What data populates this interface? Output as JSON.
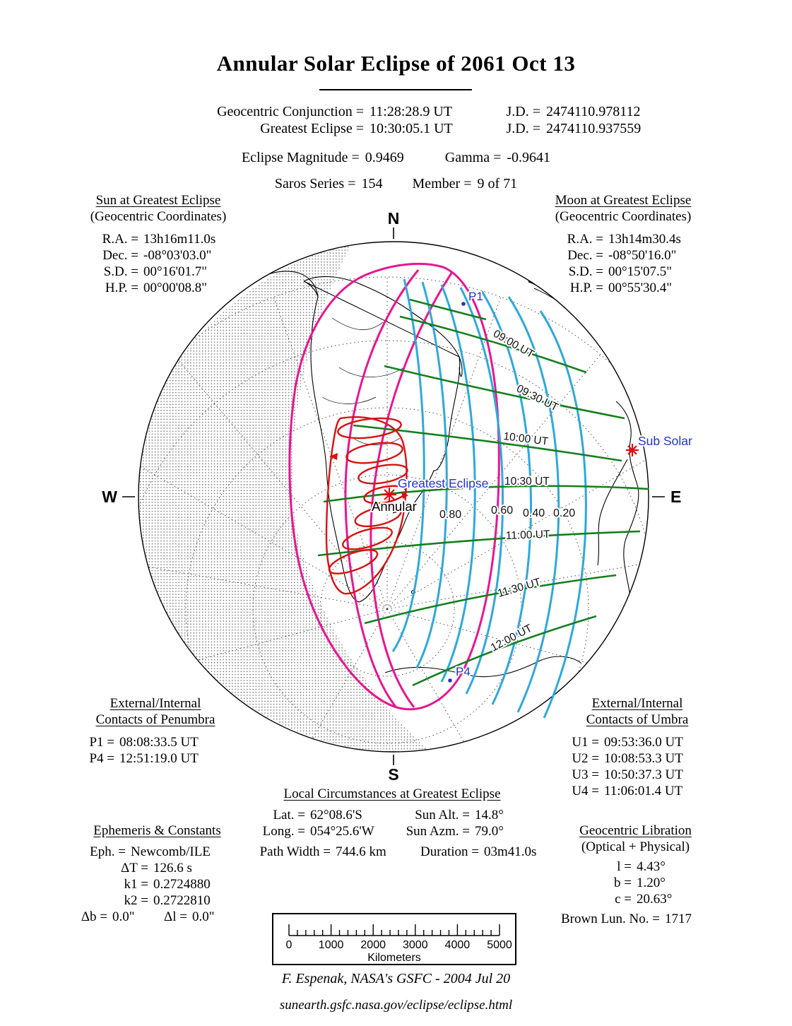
{
  "title": "Annular Solar Eclipse of  2061 Oct 13",
  "header": {
    "rows": [
      {
        "label": "Geocentric Conjunction =",
        "value": "11:28:28.9 UT",
        "jd_label": "J.D. =",
        "jd_value": "2474110.978112"
      },
      {
        "label": "Greatest Eclipse =",
        "value": "10:30:05.1 UT",
        "jd_label": "J.D. =",
        "jd_value": "2474110.937559"
      }
    ],
    "magnitude_label": "Eclipse Magnitude =",
    "magnitude_value": "0.9469",
    "gamma_label": "Gamma =",
    "gamma_value": "-0.9641",
    "saros_label": "Saros Series =",
    "saros_value": "154",
    "member_label": "Member =",
    "member_value": "9 of 71"
  },
  "sun": {
    "heading": "Sun at Greatest Eclipse",
    "subheading": "(Geocentric Coordinates)",
    "rows": [
      {
        "k": "R.A. =",
        "v": "13h16m11.0s"
      },
      {
        "k": "Dec. =",
        "v": "-08°03'03.0\""
      },
      {
        "k": "S.D. =",
        "v": "00°16'01.7\""
      },
      {
        "k": "H.P. =",
        "v": "00°00'08.8\""
      }
    ]
  },
  "moon": {
    "heading": "Moon at Greatest Eclipse",
    "subheading": "(Geocentric Coordinates)",
    "rows": [
      {
        "k": "R.A. =",
        "v": "13h14m30.4s"
      },
      {
        "k": "Dec. =",
        "v": "-08°50'16.0\""
      },
      {
        "k": "S.D. =",
        "v": "00°15'07.5\""
      },
      {
        "k": "H.P. =",
        "v": "00°55'30.4\""
      }
    ]
  },
  "penumbra": {
    "heading1": "External/Internal",
    "heading2": "Contacts of Penumbra",
    "rows": [
      {
        "k": "P1 =",
        "v": "08:08:33.5 UT"
      },
      {
        "k": "P4 =",
        "v": "12:51:19.0 UT"
      }
    ]
  },
  "umbra": {
    "heading1": "External/Internal",
    "heading2": "Contacts of Umbra",
    "rows": [
      {
        "k": "U1 =",
        "v": "09:53:36.0 UT"
      },
      {
        "k": "U2 =",
        "v": "10:08:53.3 UT"
      },
      {
        "k": "U3 =",
        "v": "10:50:37.3 UT"
      },
      {
        "k": "U4 =",
        "v": "11:06:01.4 UT"
      }
    ]
  },
  "local": {
    "heading": "Local Circumstances at Greatest Eclipse",
    "lat_label": "Lat. =",
    "lat_value": "62°08.6'S",
    "long_label": "Long. =",
    "long_value": "054°25.6'W",
    "alt_label": "Sun Alt. =",
    "alt_value": "14.8°",
    "azm_label": "Sun Azm. =",
    "azm_value": "79.0°",
    "path_label": "Path Width =",
    "path_value": "744.6 km",
    "dur_label": "Duration =",
    "dur_value": "03m41.0s"
  },
  "ephemeris": {
    "heading": "Ephemeris & Constants",
    "rows": [
      {
        "k": "Eph. =",
        "v": "Newcomb/ILE"
      },
      {
        "k": "ΔT =",
        "v": "126.6 s"
      },
      {
        "k": "k1 =",
        "v": "0.2724880"
      },
      {
        "k": "k2 =",
        "v": "0.2722810"
      }
    ],
    "db_label": "Δb =",
    "db_value": "0.0\"",
    "dl_label": "Δl =",
    "dl_value": "0.0\""
  },
  "libration": {
    "heading": "Geocentric Libration",
    "subheading": "(Optical + Physical)",
    "rows": [
      {
        "k": "l =",
        "v": "4.43°"
      },
      {
        "k": "b =",
        "v": "1.20°"
      },
      {
        "k": "c =",
        "v": "20.63°"
      }
    ],
    "brown_label": "Brown Lun. No. =",
    "brown_value": "1717"
  },
  "map": {
    "compass": {
      "n": "N",
      "s": "S",
      "e": "E",
      "w": "W"
    },
    "labels": {
      "p1": "P1",
      "p4": "P4",
      "greatest_eclipse": "Greatest Eclipse",
      "annular": "Annular",
      "sub_solar": "Sub Solar"
    },
    "time_labels": [
      "09:00 UT",
      "09:30 UT",
      "10:00 UT",
      "10:30 UT",
      "11:00 UT",
      "11:30 UT",
      "12:00 UT"
    ],
    "magnitude_labels": [
      "0.80",
      "0.60",
      "0.40",
      "0.20"
    ],
    "colors": {
      "penumbra_limit": "#e81690",
      "magnitude_curve": "#2ea8dd",
      "time_curve": "#157f1f",
      "central_path": "#d91111",
      "map_label_blue": "#2233cc",
      "coast": "#000000"
    }
  },
  "scalebar": {
    "labels": [
      "0",
      "1000",
      "2000",
      "3000",
      "4000",
      "5000"
    ],
    "unit": "Kilometers"
  },
  "credit": "F. Espenak, NASA's GSFC -  2004 Jul 20",
  "url": "sunearth.gsfc.nasa.gov/eclipse/eclipse.html"
}
